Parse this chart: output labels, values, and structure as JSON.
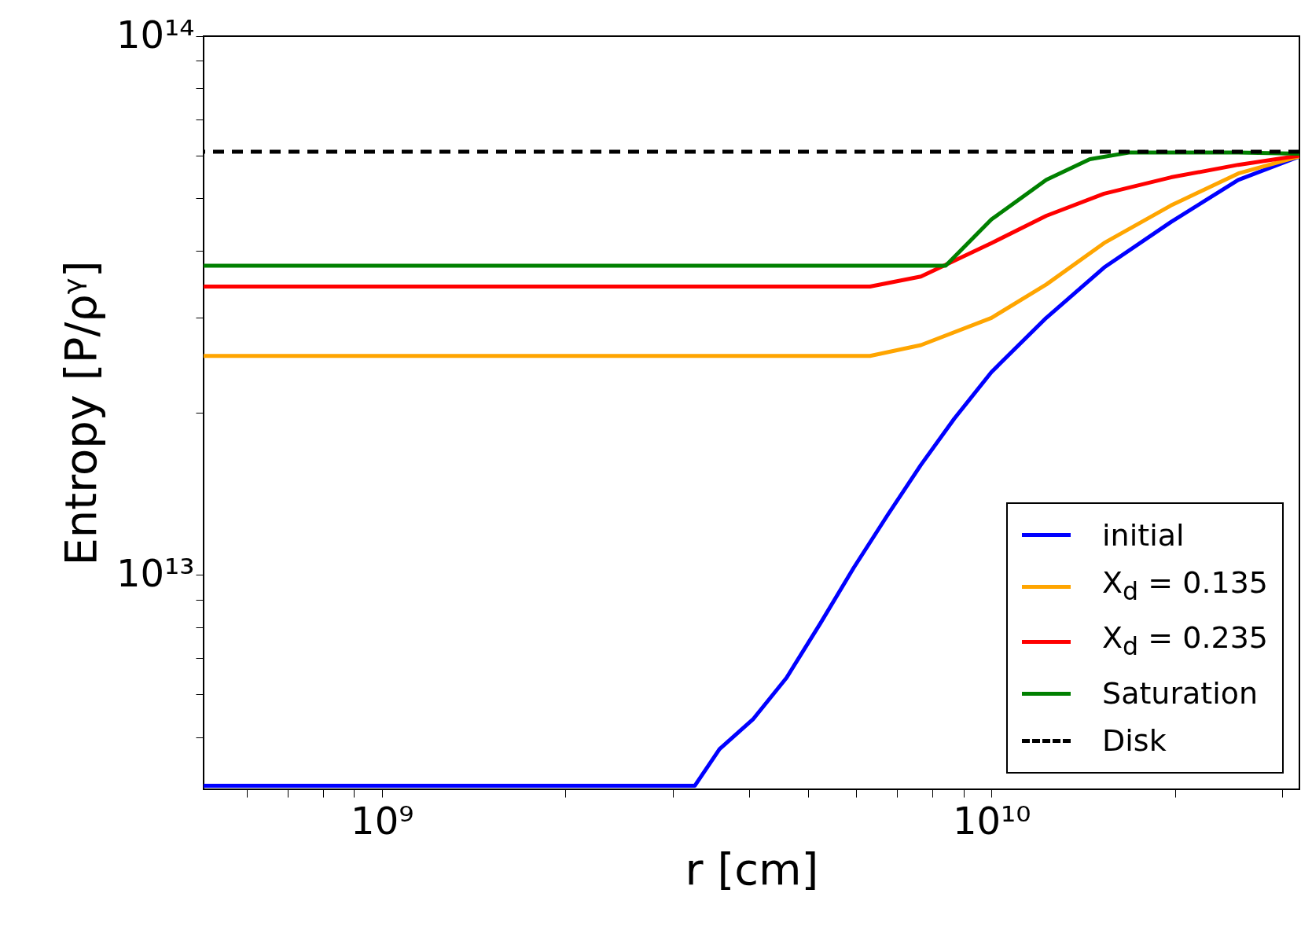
{
  "chart_data": {
    "type": "line",
    "xlabel": "r [cm]",
    "ylabel": "Entropy [P/ρᵞ]",
    "log": "xy",
    "legend": "bottom right",
    "xlim": [
      510000000.0,
      32000000000.0
    ],
    "ylim": [
      4000000000000.0,
      100000000000000.0
    ],
    "xticks": [
      {
        "value": 600000000.0,
        "label": null
      },
      {
        "value": 700000000.0,
        "label": null
      },
      {
        "value": 800000000.0,
        "label": null
      },
      {
        "value": 900000000.0,
        "label": null
      },
      {
        "value": 1000000000.0,
        "label": "10⁹"
      },
      {
        "value": 2000000000.0,
        "label": null
      },
      {
        "value": 3000000000.0,
        "label": null
      },
      {
        "value": 4000000000.0,
        "label": null
      },
      {
        "value": 5000000000.0,
        "label": null
      },
      {
        "value": 6000000000.0,
        "label": null
      },
      {
        "value": 7000000000.0,
        "label": null
      },
      {
        "value": 8000000000.0,
        "label": null
      },
      {
        "value": 9000000000.0,
        "label": null
      },
      {
        "value": 10000000000.0,
        "label": "10¹⁰"
      },
      {
        "value": 20000000000.0,
        "label": null
      },
      {
        "value": 30000000000.0,
        "label": null
      }
    ],
    "yticks": [
      {
        "value": 5000000000000.0,
        "label": null
      },
      {
        "value": 6000000000000.0,
        "label": null
      },
      {
        "value": 7000000000000.0,
        "label": null
      },
      {
        "value": 8000000000000.0,
        "label": null
      },
      {
        "value": 9000000000000.0,
        "label": null
      },
      {
        "value": 10000000000000.0,
        "label": "10¹³"
      },
      {
        "value": 20000000000000.0,
        "label": null
      },
      {
        "value": 30000000000000.0,
        "label": null
      },
      {
        "value": 40000000000000.0,
        "label": null
      },
      {
        "value": 50000000000000.0,
        "label": null
      },
      {
        "value": 60000000000000.0,
        "label": null
      },
      {
        "value": 70000000000000.0,
        "label": null
      },
      {
        "value": 80000000000000.0,
        "label": null
      },
      {
        "value": 90000000000000.0,
        "label": null
      },
      {
        "value": 100000000000000.0,
        "label": "10¹⁴"
      }
    ],
    "series": [
      {
        "name": "initial",
        "color": "#0000ff",
        "x": [
          510000000.0,
          1000000000.0,
          2000000000.0,
          3260000000.0,
          3580000000.0,
          4060000000.0,
          4610000000.0,
          5240000000.0,
          5940000000.0,
          6750000000.0,
          7660000000.0,
          8690000000.0,
          10000000000.0,
          12300000000.0,
          15300000000.0,
          19700000000.0,
          25400000000.0,
          32000000000.0
        ],
        "values": [
          4060000000000.0,
          4060000000000.0,
          4060000000000.0,
          4060000000000.0,
          4750000000000.0,
          5390000000000.0,
          6440000000000.0,
          8130000000000.0,
          10300000000000.0,
          12900000000000.0,
          16000000000000.0,
          19500000000000.0,
          23800000000000.0,
          30000000000000.0,
          37200000000000.0,
          45200000000000.0,
          54100000000000.0,
          59800000000000.0
        ]
      },
      {
        "name": "X$_{d}$ = 0.135",
        "color": "#ffa500",
        "x": [
          510000000.0,
          1000000000.0,
          3000000000.0,
          6320000000.0,
          7660000000.0,
          10000000000.0,
          12300000000.0,
          15300000000.0,
          19700000000.0,
          25400000000.0,
          32000000000.0
        ],
        "values": [
          25500000000000.0,
          25500000000000.0,
          25500000000000.0,
          25500000000000.0,
          26700000000000.0,
          30000000000000.0,
          34600000000000.0,
          41300000000000.0,
          48500000000000.0,
          55600000000000.0,
          59800000000000.0
        ]
      },
      {
        "name": "X$_{d}$ = 0.235",
        "color": "#ff0000",
        "x": [
          510000000.0,
          1000000000.0,
          3000000000.0,
          6320000000.0,
          7660000000.0,
          10000000000.0,
          12300000000.0,
          15300000000.0,
          19700000000.0,
          25400000000.0,
          32000000000.0
        ],
        "values": [
          34300000000000.0,
          34300000000000.0,
          34300000000000.0,
          34300000000000.0,
          35800000000000.0,
          41300000000000.0,
          46400000000000.0,
          51000000000000.0,
          54700000000000.0,
          57700000000000.0,
          60000000000000.0
        ]
      },
      {
        "name": "Saturation",
        "color": "#008000",
        "x": [
          510000000.0,
          1000000000.0,
          3000000000.0,
          8410000000.0,
          10000000000.0,
          12300000000.0,
          14500000000.0,
          16800000000.0,
          25400000000.0,
          32000000000.0
        ],
        "values": [
          37500000000000.0,
          37500000000000.0,
          37500000000000.0,
          37500000000000.0,
          45700000000000.0,
          54100000000000.0,
          59100000000000.0,
          60800000000000.0,
          60800000000000.0,
          60500000000000.0
        ]
      }
    ],
    "ref_lines": [
      {
        "axis": "y",
        "value": 61000000000000.0,
        "label": "Disk",
        "color": "#000000",
        "line_style": "dashed"
      }
    ]
  }
}
